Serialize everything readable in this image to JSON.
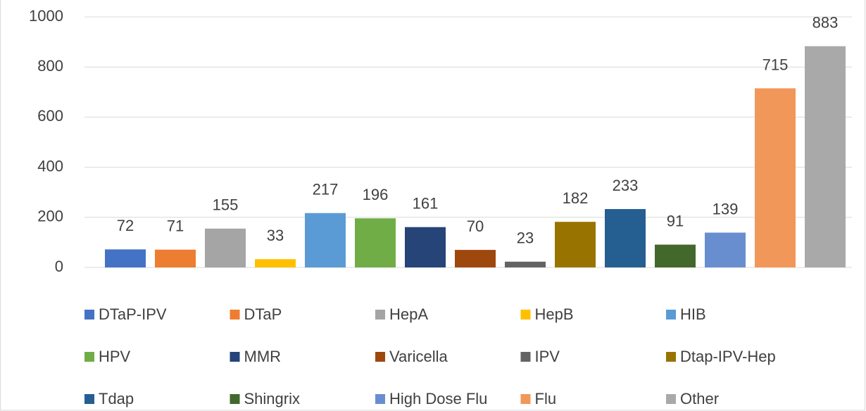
{
  "chart_data": {
    "type": "bar",
    "categories": [
      "DTaP-IPV",
      "DTaP",
      "HepA",
      "HepB",
      "HIB",
      "HPV",
      "MMR",
      "Varicella",
      "IPV",
      "Dtap-IPV-Hep",
      "Tdap",
      "Shingrix",
      "High Dose Flu",
      "Flu",
      "Other"
    ],
    "values": [
      72,
      71,
      155,
      33,
      217,
      196,
      161,
      70,
      23,
      182,
      233,
      91,
      139,
      715,
      883
    ],
    "colors": [
      "#4472c4",
      "#ed7d31",
      "#a5a5a5",
      "#ffc000",
      "#5b9bd5",
      "#70ad47",
      "#264478",
      "#9e480e",
      "#636363",
      "#997300",
      "#255e91",
      "#43682b",
      "#698ed0",
      "#f1975a",
      "#a9a9a9"
    ],
    "ylim": [
      0,
      1000
    ],
    "yticks": [
      0,
      200,
      400,
      600,
      800,
      1000
    ],
    "grid": true,
    "legend": "bottom"
  }
}
